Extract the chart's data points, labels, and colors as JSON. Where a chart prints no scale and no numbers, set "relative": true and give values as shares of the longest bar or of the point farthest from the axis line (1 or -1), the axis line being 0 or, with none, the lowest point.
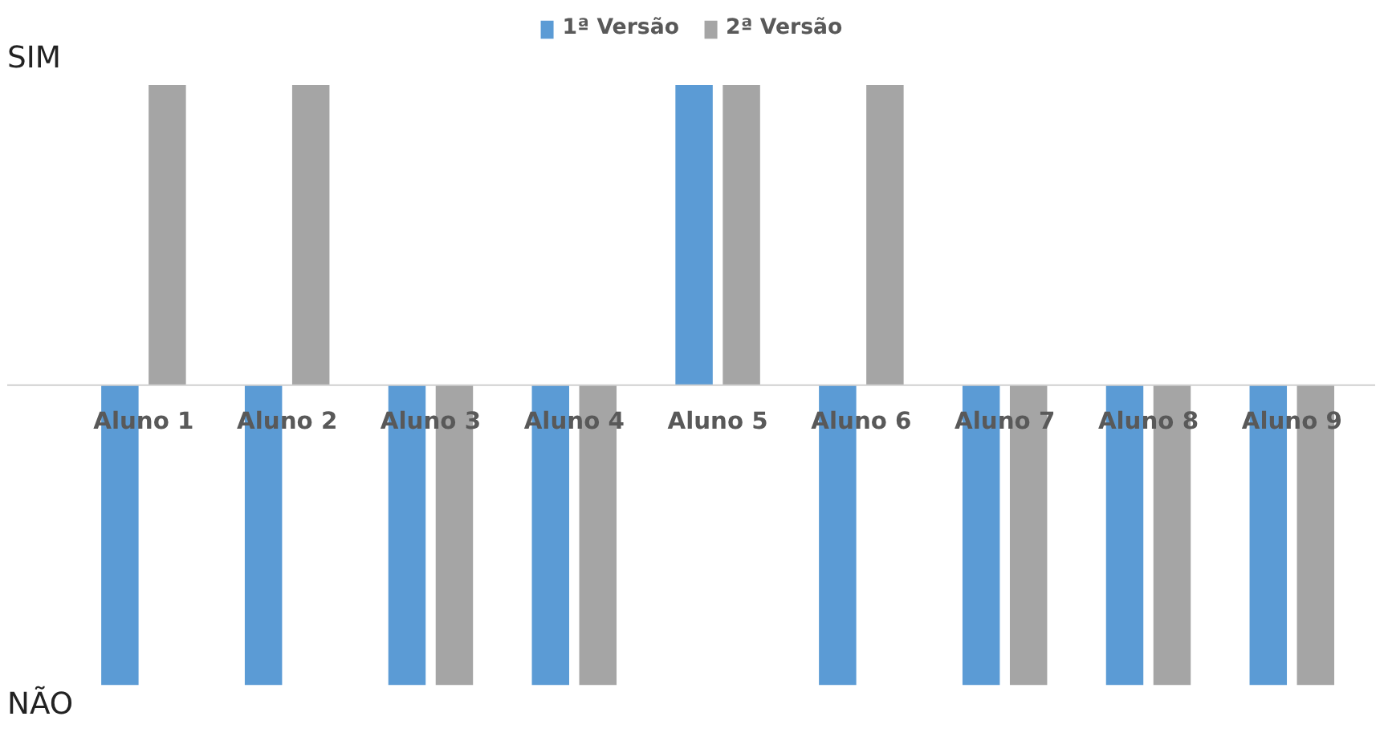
{
  "chart_data": {
    "type": "bar",
    "relative": true,
    "categories": [
      "Aluno 1",
      "Aluno 2",
      "Aluno 3",
      "Aluno 4",
      "Aluno 5",
      "Aluno 6",
      "Aluno 7",
      "Aluno 8",
      "Aluno 9"
    ],
    "series": [
      {
        "name": "1ª Versão",
        "color": "#5b9bd5",
        "values": [
          -1,
          -1,
          -1,
          -1,
          1,
          -1,
          -1,
          -1,
          -1
        ]
      },
      {
        "name": "2ª Versão",
        "color": "#a5a5a5",
        "values": [
          1,
          1,
          -1,
          -1,
          1,
          1,
          -1,
          -1,
          -1
        ]
      }
    ],
    "annotations": [
      "SIM",
      "NÃO"
    ],
    "legend": "top"
  }
}
